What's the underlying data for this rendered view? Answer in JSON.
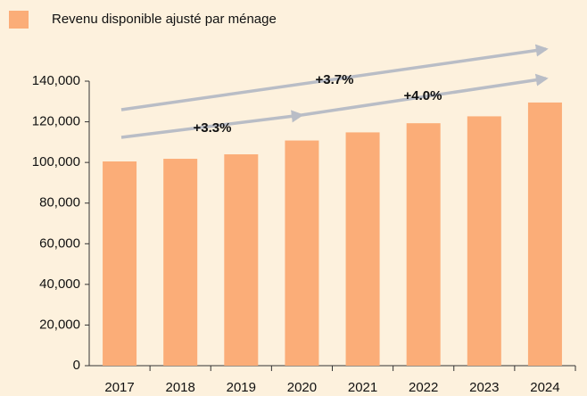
{
  "chart_data": {
    "type": "bar",
    "legend": "Revenu disponible ajusté par ménage",
    "categories": [
      "2017",
      "2018",
      "2019",
      "2020",
      "2021",
      "2022",
      "2023",
      "2024"
    ],
    "series": [
      {
        "name": "Revenu disponible ajusté par ménage",
        "color": "#fbad78",
        "values": [
          100500,
          101800,
          104000,
          110800,
          114800,
          119300,
          122700,
          129500
        ]
      }
    ],
    "ylim": [
      0,
      140000
    ],
    "yticks": [
      0,
      {
        "value": 20000,
        "label": "20,000"
      },
      {
        "value": 40000,
        "label": "40,000"
      },
      {
        "value": 60000,
        "label": "60,000"
      },
      {
        "value": 80000,
        "label": "80,000"
      },
      {
        "value": 100000,
        "label": "100,000"
      },
      {
        "value": 120000,
        "label": "120,000"
      },
      {
        "value": 140000,
        "label": "140,000"
      }
    ],
    "annotations": [
      "+3.7%",
      "+3.3%",
      "+4.0%"
    ]
  }
}
